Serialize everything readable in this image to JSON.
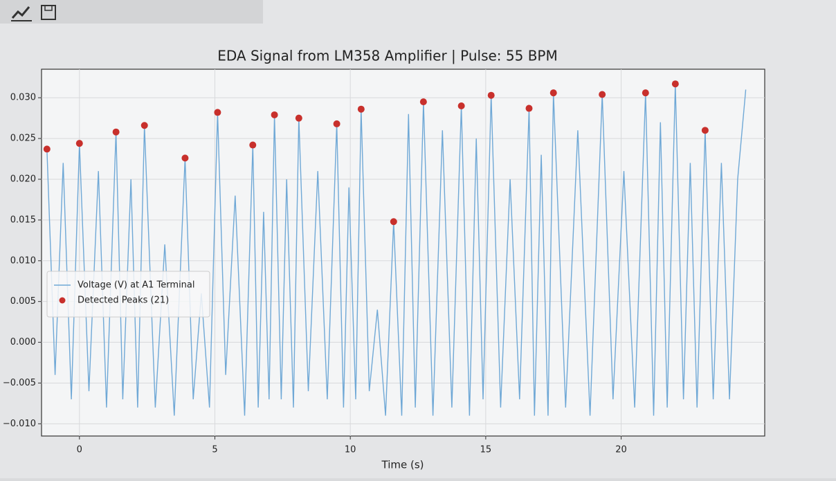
{
  "chart_data": {
    "type": "line",
    "title": "EDA Signal from LM358 Amplifier | Pulse: 55 BPM",
    "x_label": "Time (s)",
    "xlim": [
      -1.4,
      25.3
    ],
    "ylim": [
      -0.0115,
      0.0335
    ],
    "xticks": [
      0,
      5,
      10,
      15,
      20
    ],
    "yticks": [
      {
        "value": -0.01,
        "label": "−0.010"
      },
      {
        "value": -0.005,
        "label": "−0.005"
      },
      {
        "value": 0.0,
        "label": "0.000"
      },
      {
        "value": 0.005,
        "label": "0.005"
      },
      {
        "value": 0.01,
        "label": "0.010"
      },
      {
        "value": 0.015,
        "label": "0.015"
      },
      {
        "value": 0.02,
        "label": "0.020"
      },
      {
        "value": 0.025,
        "label": "0.025"
      },
      {
        "value": 0.03,
        "label": "0.030"
      }
    ],
    "grid": true,
    "legend": "center left",
    "series": [
      {
        "name": "Voltage (V) at A1 Terminal",
        "type": "line",
        "color": "#6fa8d6",
        "x": [
          -1.2,
          -0.9,
          -0.6,
          -0.3,
          0.0,
          0.35,
          0.7,
          1.0,
          1.35,
          1.6,
          1.9,
          2.15,
          2.4,
          2.8,
          3.15,
          3.5,
          3.9,
          4.2,
          4.5,
          4.8,
          5.1,
          5.4,
          5.75,
          6.1,
          6.4,
          6.6,
          6.8,
          7.0,
          7.2,
          7.45,
          7.65,
          7.9,
          8.1,
          8.45,
          8.8,
          9.15,
          9.5,
          9.75,
          9.95,
          10.2,
          10.4,
          10.7,
          11.0,
          11.3,
          11.6,
          11.9,
          12.15,
          12.4,
          12.7,
          13.05,
          13.4,
          13.75,
          14.1,
          14.4,
          14.65,
          14.9,
          15.2,
          15.55,
          15.9,
          16.25,
          16.6,
          16.8,
          17.05,
          17.3,
          17.5,
          17.95,
          18.4,
          18.85,
          19.3,
          19.7,
          20.1,
          20.5,
          20.9,
          21.2,
          21.45,
          21.7,
          22.0,
          22.3,
          22.55,
          22.8,
          23.1,
          23.4,
          23.7,
          24.0,
          24.3,
          24.6
        ],
        "values": [
          0.0237,
          -0.004,
          0.022,
          -0.007,
          0.0244,
          -0.006,
          0.021,
          -0.008,
          0.0258,
          -0.007,
          0.02,
          -0.008,
          0.0266,
          -0.008,
          0.012,
          -0.009,
          0.0226,
          -0.007,
          0.006,
          -0.008,
          0.0282,
          -0.004,
          0.018,
          -0.009,
          0.0242,
          -0.008,
          0.016,
          -0.007,
          0.0279,
          -0.007,
          0.02,
          -0.008,
          0.0275,
          -0.006,
          0.021,
          -0.007,
          0.0268,
          -0.008,
          0.019,
          -0.007,
          0.0286,
          -0.006,
          0.004,
          -0.009,
          0.0148,
          -0.009,
          0.028,
          -0.008,
          0.0295,
          -0.009,
          0.026,
          -0.008,
          0.029,
          -0.009,
          0.025,
          -0.007,
          0.0303,
          -0.008,
          0.02,
          -0.007,
          0.0287,
          -0.009,
          0.023,
          -0.009,
          0.0306,
          -0.008,
          0.026,
          -0.009,
          0.0304,
          -0.007,
          0.021,
          -0.008,
          0.0306,
          -0.009,
          0.027,
          -0.008,
          0.0317,
          -0.007,
          0.022,
          -0.008,
          0.026,
          -0.007,
          0.022,
          -0.007,
          0.02,
          0.031
        ]
      },
      {
        "name": "Detected Peaks (21)",
        "type": "scatter",
        "color": "#c8302c",
        "x": [
          -1.2,
          0.0,
          1.35,
          2.4,
          3.9,
          5.1,
          6.4,
          7.2,
          8.1,
          9.5,
          10.4,
          11.6,
          12.7,
          14.1,
          15.2,
          16.6,
          17.5,
          19.3,
          20.9,
          22.0,
          23.1
        ],
        "values": [
          0.0237,
          0.0244,
          0.0258,
          0.0266,
          0.0226,
          0.0282,
          0.0242,
          0.0279,
          0.0275,
          0.0268,
          0.0286,
          0.0148,
          0.0295,
          0.029,
          0.0303,
          0.0287,
          0.0306,
          0.0304,
          0.0306,
          0.0317,
          0.026
        ]
      }
    ]
  }
}
